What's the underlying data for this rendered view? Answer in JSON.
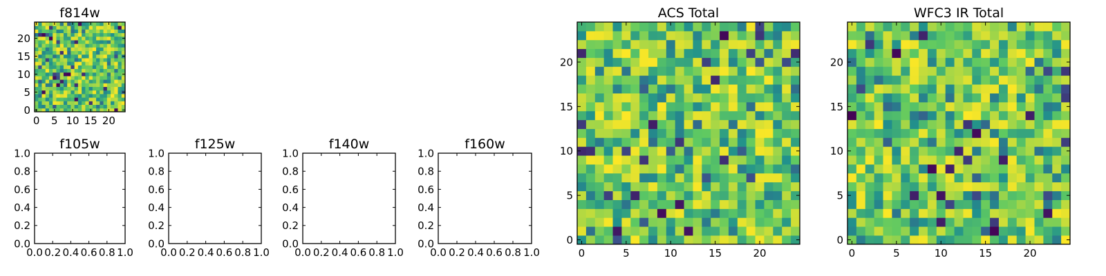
{
  "chart_data": [
    {
      "type": "heatmap",
      "title": "f814w",
      "xlabel": "",
      "ylabel": "",
      "grid_size": 25,
      "xlim": [
        -0.5,
        24.5
      ],
      "ylim": [
        -0.5,
        24.5
      ],
      "x_ticks": [
        0,
        5,
        10,
        15,
        20
      ],
      "y_ticks": [
        0,
        5,
        10,
        15,
        20
      ],
      "x_tick_labels": [
        "0",
        "5",
        "10",
        "15",
        "20"
      ],
      "y_tick_labels": [
        "0",
        "5",
        "10",
        "15",
        "20"
      ],
      "colormap": [
        "#440154",
        "#3b528b",
        "#21918c",
        "#5ec962",
        "#fde725"
      ],
      "seed": 11,
      "grid": false,
      "legend": "none"
    },
    {
      "type": "empty",
      "title": "f105w",
      "xlabel": "",
      "ylabel": "",
      "xlim": [
        0,
        1
      ],
      "ylim": [
        0,
        1
      ],
      "x_ticks": [
        0,
        0.2,
        0.4,
        0.6,
        0.8,
        1.0
      ],
      "y_ticks": [
        0,
        0.2,
        0.4,
        0.6,
        0.8,
        1.0
      ],
      "x_tick_labels": [
        "0.0",
        "0.2",
        "0.4",
        "0.6",
        "0.8",
        "1.0"
      ],
      "y_tick_labels": [
        "0.0",
        "0.2",
        "0.4",
        "0.6",
        "0.8",
        "1.0"
      ]
    },
    {
      "type": "empty",
      "title": "f125w",
      "xlabel": "",
      "ylabel": "",
      "xlim": [
        0,
        1
      ],
      "ylim": [
        0,
        1
      ],
      "x_ticks": [
        0,
        0.2,
        0.4,
        0.6,
        0.8,
        1.0
      ],
      "y_ticks": [
        0,
        0.2,
        0.4,
        0.6,
        0.8,
        1.0
      ],
      "x_tick_labels": [
        "0.0",
        "0.2",
        "0.4",
        "0.6",
        "0.8",
        "1.0"
      ],
      "y_tick_labels": [
        "0.0",
        "0.2",
        "0.4",
        "0.6",
        "0.8",
        "1.0"
      ]
    },
    {
      "type": "empty",
      "title": "f140w",
      "xlabel": "",
      "ylabel": "",
      "xlim": [
        0,
        1
      ],
      "ylim": [
        0,
        1
      ],
      "x_ticks": [
        0,
        0.2,
        0.4,
        0.6,
        0.8,
        1.0
      ],
      "y_ticks": [
        0,
        0.2,
        0.4,
        0.6,
        0.8,
        1.0
      ],
      "x_tick_labels": [
        "0.0",
        "0.2",
        "0.4",
        "0.6",
        "0.8",
        "1.0"
      ],
      "y_tick_labels": [
        "0.0",
        "0.2",
        "0.4",
        "0.6",
        "0.8",
        "1.0"
      ]
    },
    {
      "type": "empty",
      "title": "f160w",
      "xlabel": "",
      "ylabel": "",
      "xlim": [
        0,
        1
      ],
      "ylim": [
        0,
        1
      ],
      "x_ticks": [
        0,
        0.2,
        0.4,
        0.6,
        0.8,
        1.0
      ],
      "y_ticks": [
        0,
        0.2,
        0.4,
        0.6,
        0.8,
        1.0
      ],
      "x_tick_labels": [
        "0.0",
        "0.2",
        "0.4",
        "0.6",
        "0.8",
        "1.0"
      ],
      "y_tick_labels": [
        "0.0",
        "0.2",
        "0.4",
        "0.6",
        "0.8",
        "1.0"
      ]
    },
    {
      "type": "heatmap",
      "title": "ACS Total",
      "xlabel": "",
      "ylabel": "",
      "grid_size": 25,
      "xlim": [
        -0.5,
        24.5
      ],
      "ylim": [
        -0.5,
        24.5
      ],
      "x_ticks": [
        0,
        5,
        10,
        15,
        20
      ],
      "y_ticks": [
        0,
        5,
        10,
        15,
        20
      ],
      "x_tick_labels": [
        "0",
        "5",
        "10",
        "15",
        "20"
      ],
      "y_tick_labels": [
        "0",
        "5",
        "10",
        "15",
        "20"
      ],
      "colormap": [
        "#440154",
        "#3b528b",
        "#21918c",
        "#5ec962",
        "#fde725"
      ],
      "seed": 23,
      "grid": false,
      "legend": "none"
    },
    {
      "type": "heatmap",
      "title": "WFC3 IR Total",
      "xlabel": "",
      "ylabel": "",
      "grid_size": 25,
      "xlim": [
        -0.5,
        24.5
      ],
      "ylim": [
        -0.5,
        24.5
      ],
      "x_ticks": [
        0,
        5,
        10,
        15,
        20
      ],
      "y_ticks": [
        0,
        5,
        10,
        15,
        20
      ],
      "x_tick_labels": [
        "0",
        "5",
        "10",
        "15",
        "20"
      ],
      "y_tick_labels": [
        "0",
        "5",
        "10",
        "15",
        "20"
      ],
      "colormap": [
        "#440154",
        "#3b528b",
        "#21918c",
        "#5ec962",
        "#fde725"
      ],
      "seed": 37,
      "grid": false,
      "legend": "none"
    }
  ]
}
